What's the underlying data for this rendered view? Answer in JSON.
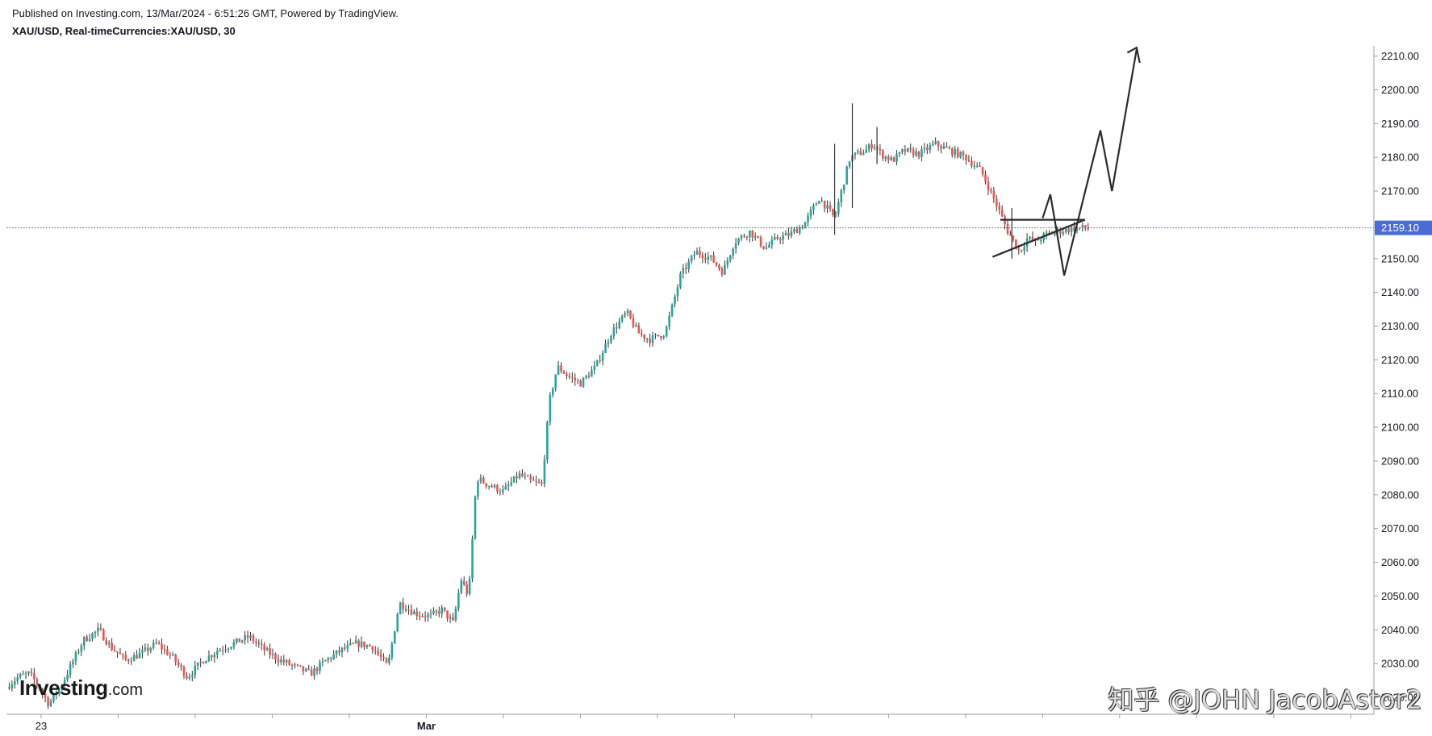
{
  "header": {
    "published": "Published on Investing.com, 13/Mar/2024 - 6:51:26 GMT, Powered by TradingView.",
    "symbol": "XAU/USD, Real-timeCurrencies:XAU/USD, 30"
  },
  "logo": {
    "brand": "Investing",
    "suffix": ".com"
  },
  "watermark": "知乎 @JOHN JacobAstor2",
  "colors": {
    "up": "#26a69a",
    "down": "#ef5350",
    "wick": "#333333",
    "price_line": "#3f51b5",
    "price_tag": "#4a6cd4",
    "drawing": "#2b2b2b"
  },
  "chart_data": {
    "type": "line",
    "title": "XAU/USD, Real-timeCurrencies:XAU/USD, 30",
    "ylim": [
      2015,
      2213
    ],
    "yticks": [
      2020,
      2030,
      2040,
      2050,
      2060,
      2070,
      2080,
      2090,
      2100,
      2110,
      2120,
      2130,
      2140,
      2150,
      2160,
      2170,
      2180,
      2190,
      2200,
      2210
    ],
    "xticks": [
      {
        "x": 0,
        "label": "23"
      },
      {
        "x": 1,
        "label": ""
      },
      {
        "x": 2,
        "label": ""
      },
      {
        "x": 3,
        "label": ""
      },
      {
        "x": 4,
        "label": ""
      },
      {
        "x": 5,
        "label": "Mar"
      },
      {
        "x": 6,
        "label": ""
      },
      {
        "x": 7,
        "label": ""
      },
      {
        "x": 8,
        "label": ""
      },
      {
        "x": 9,
        "label": ""
      },
      {
        "x": 10,
        "label": ""
      },
      {
        "x": 11,
        "label": ""
      },
      {
        "x": 12,
        "label": ""
      },
      {
        "x": 13,
        "label": ""
      },
      {
        "x": 14,
        "label": ""
      },
      {
        "x": 15,
        "label": ""
      },
      {
        "x": 16,
        "label": ""
      },
      {
        "x": 17,
        "label": ""
      }
    ],
    "xlim": [
      -0.45,
      17.3
    ],
    "last_price": 2159.1,
    "last_price_label": "2159.10",
    "series": [
      {
        "x": [
          -0.45,
          -0.3,
          -0.15,
          -0.05,
          0.1,
          0.25,
          0.4,
          0.55,
          0.75,
          0.9,
          1.1,
          1.3,
          1.5,
          1.7,
          1.9,
          2.1,
          2.3,
          2.5,
          2.7,
          2.9,
          3.1,
          3.3,
          3.5,
          3.7,
          3.9,
          4.1,
          4.3,
          4.4,
          4.5,
          4.65,
          4.85,
          5.05,
          5.2,
          5.35,
          5.45,
          5.55,
          5.65,
          5.8,
          6.0,
          6.2,
          6.35,
          6.5,
          6.6,
          6.7,
          6.85,
          7.0,
          7.2,
          7.4,
          7.6,
          7.75,
          7.9,
          8.1,
          8.3,
          8.5,
          8.7,
          8.85,
          9.0,
          9.2,
          9.4,
          9.55,
          9.7,
          9.9,
          10.1,
          10.3,
          10.5,
          10.7,
          10.8,
          10.9,
          11.05,
          11.2,
          11.4,
          11.6,
          11.8,
          12.0,
          12.2,
          12.4,
          12.55,
          12.7,
          12.8,
          12.9,
          13.05,
          13.2,
          13.4,
          13.6
        ],
        "values": [
          2023,
          2026,
          2027,
          2024,
          2018,
          2023,
          2030,
          2037,
          2040,
          2035,
          2031,
          2033,
          2036,
          2032,
          2026,
          2031,
          2034,
          2036,
          2038,
          2034,
          2031,
          2029,
          2027,
          2031,
          2034,
          2036,
          2035,
          2032,
          2029,
          2048,
          2045,
          2044,
          2046,
          2042,
          2055,
          2050,
          2085,
          2083,
          2081,
          2086,
          2084,
          2083,
          2108,
          2118,
          2115,
          2113,
          2118,
          2128,
          2134,
          2128,
          2126,
          2128,
          2145,
          2152,
          2150,
          2146,
          2155,
          2158,
          2153,
          2156,
          2157,
          2160,
          2168,
          2162,
          2180,
          2182,
          2184,
          2181,
          2179,
          2182,
          2181,
          2184,
          2182,
          2180,
          2176,
          2166,
          2158,
          2152,
          2156,
          2155,
          2157,
          2158,
          2159,
          2159
        ]
      }
    ]
  }
}
